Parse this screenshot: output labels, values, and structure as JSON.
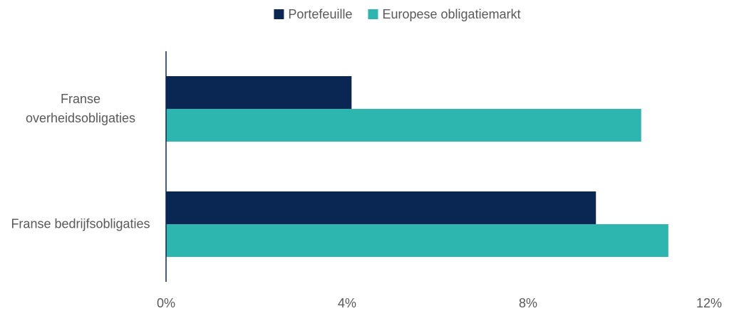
{
  "chart_data": {
    "type": "hbar",
    "categories": [
      "Franse overheidsobligaties",
      "Franse bedrijfsobligaties"
    ],
    "series": [
      {
        "name": "Portefeuille",
        "color": "#0a2753",
        "values": [
          4.1,
          9.5
        ]
      },
      {
        "name": "Europese obligatiemarkt",
        "color": "#2db5b0",
        "values": [
          10.5,
          11.1
        ]
      }
    ],
    "xlim": [
      0,
      12
    ],
    "xticks": [
      {
        "value": 0,
        "label": "0%"
      },
      {
        "value": 4,
        "label": "4%"
      },
      {
        "value": 8,
        "label": "8%"
      },
      {
        "value": 12,
        "label": "12%"
      }
    ],
    "legend": "top"
  }
}
